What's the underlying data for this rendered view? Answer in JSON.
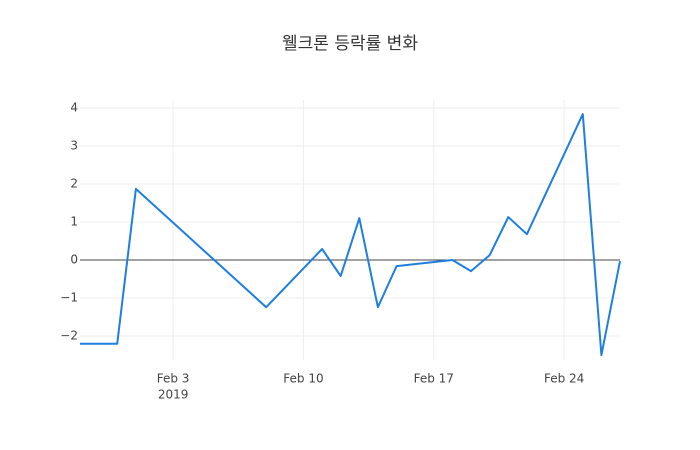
{
  "chart_data": {
    "type": "line",
    "title": "웰크론 등락률 변화",
    "x": [
      "2019-01-29",
      "2019-01-31",
      "2019-02-01",
      "2019-02-08",
      "2019-02-11",
      "2019-02-12",
      "2019-02-13",
      "2019-02-14",
      "2019-02-15",
      "2019-02-18",
      "2019-02-19",
      "2019-02-20",
      "2019-02-21",
      "2019-02-22",
      "2019-02-25",
      "2019-02-26",
      "2019-02-27"
    ],
    "series": [
      {
        "color": "#1f7fe0",
        "values": [
          -2.2,
          -2.2,
          1.87,
          -1.24,
          0.29,
          -0.42,
          1.1,
          -1.24,
          -0.16,
          0.0,
          -0.29,
          0.13,
          1.13,
          0.68,
          3.84,
          -2.5,
          -0.03
        ]
      }
    ],
    "xlim": [
      "2019-01-29",
      "2019-02-27"
    ],
    "xticks": [
      {
        "value": "2019-02-03",
        "label": "Feb 3"
      },
      {
        "value": "2019-02-10",
        "label": "Feb 10"
      },
      {
        "value": "2019-02-17",
        "label": "Feb 17"
      },
      {
        "value": "2019-02-24",
        "label": "Feb 24"
      }
    ],
    "x_year_label": "2019",
    "ylim": [
      -2.63,
      4.21
    ],
    "yticks": [
      {
        "value": -2,
        "label": "−2"
      },
      {
        "value": -1,
        "label": "−1"
      },
      0,
      1,
      2,
      3,
      4
    ],
    "grid": true,
    "zeroline": true
  }
}
